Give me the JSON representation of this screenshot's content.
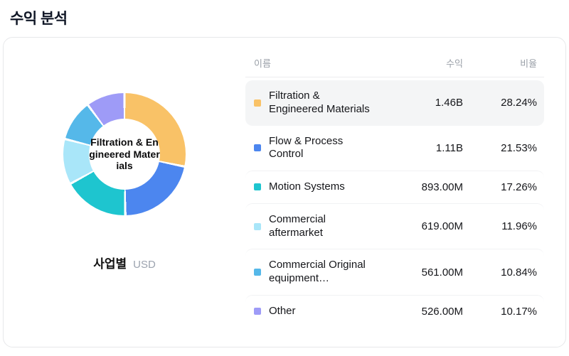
{
  "page": {
    "title": "수익 분석"
  },
  "chart": {
    "center_label": "Filtration & Engineered Materials",
    "footer_label": "사업별",
    "footer_unit": "USD"
  },
  "table": {
    "headers": {
      "name": "이름",
      "revenue": "수익",
      "ratio": "비율"
    },
    "rows": [
      {
        "name": "Filtration & Engineered Materials",
        "revenue": "1.46B",
        "ratio": "28.24%",
        "color": "#f9c267"
      },
      {
        "name": "Flow & Process Control",
        "revenue": "1.11B",
        "ratio": "21.53%",
        "color": "#4c86ef"
      },
      {
        "name": "Motion Systems",
        "revenue": "893.00M",
        "ratio": "17.26%",
        "color": "#1ec5cf"
      },
      {
        "name": "Commercial aftermarket",
        "revenue": "619.00M",
        "ratio": "11.96%",
        "color": "#a9e6f9"
      },
      {
        "name": "Commercial Original equipment…",
        "revenue": "561.00M",
        "ratio": "10.84%",
        "color": "#55b8e9"
      },
      {
        "name": "Other",
        "revenue": "526.00M",
        "ratio": "10.17%",
        "color": "#9e9bf7"
      }
    ]
  },
  "chart_data": {
    "type": "pie",
    "donut": true,
    "title": "수익 분석",
    "dimension": "사업별",
    "unit": "USD",
    "categories": [
      "Filtration & Engineered Materials",
      "Flow & Process Control",
      "Motion Systems",
      "Commercial aftermarket",
      "Commercial Original equipment…",
      "Other"
    ],
    "values": [
      28.24,
      21.53,
      17.26,
      11.96,
      10.84,
      10.17
    ],
    "revenues": [
      "1.46B",
      "1.11B",
      "893.00M",
      "619.00M",
      "561.00M",
      "526.00M"
    ],
    "colors": [
      "#f9c267",
      "#4c86ef",
      "#1ec5cf",
      "#a9e6f9",
      "#55b8e9",
      "#9e9bf7"
    ],
    "legend_position": "right",
    "start_angle_deg": 0,
    "selected_slice": "Filtration & Engineered Materials"
  }
}
